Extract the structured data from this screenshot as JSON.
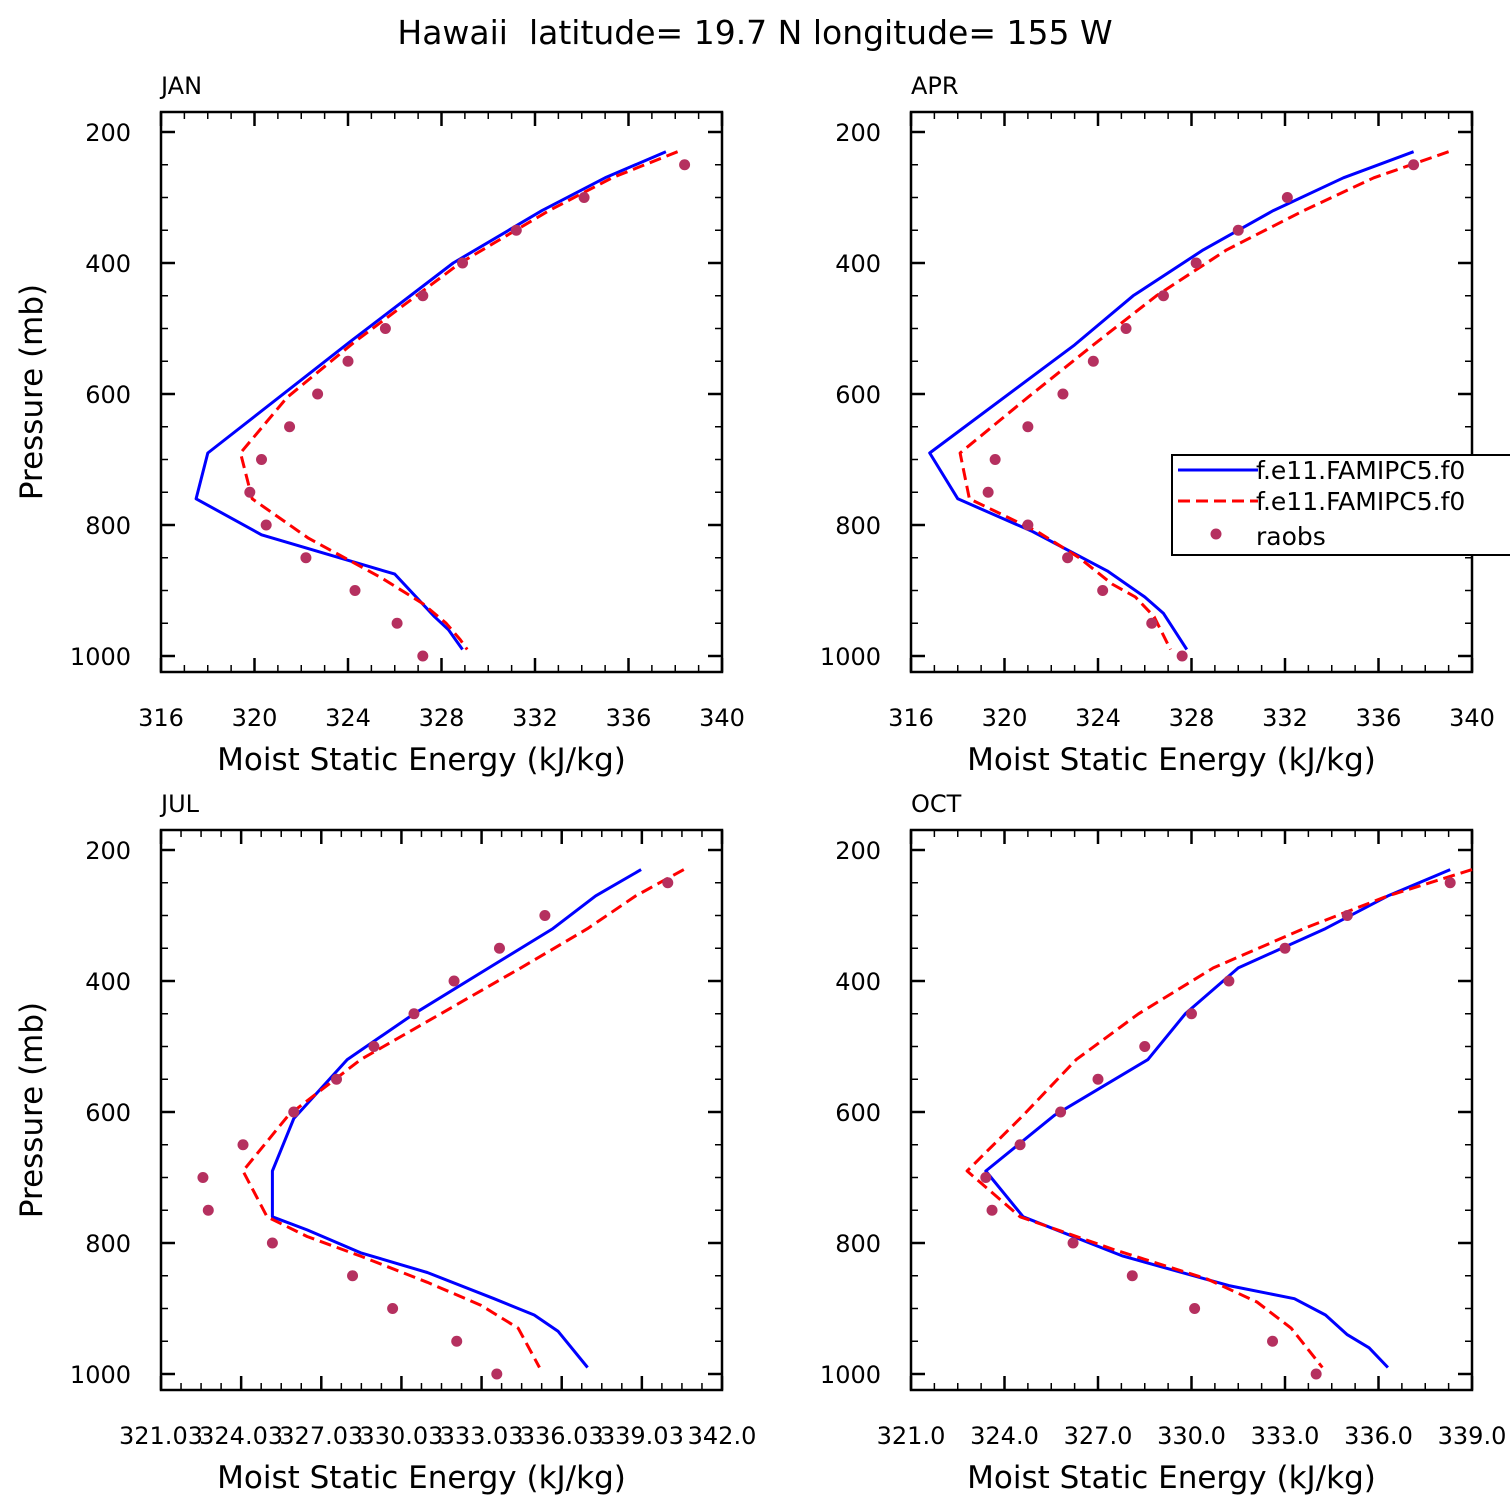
{
  "title": "Hawaii  latitude= 19.7 N longitude= 155 W",
  "legend": {
    "series": [
      "f.e11.FAMIPC5.f0",
      "f.e11.FAMIPC5.f0",
      "raobs"
    ],
    "colors": [
      "#0000ff",
      "#ff0000",
      "#b5305f"
    ],
    "styles": [
      "solid",
      "dashed",
      "dot"
    ],
    "panel": "APR",
    "placement": "right"
  },
  "chart_data": [
    {
      "type": "line",
      "title": "JAN",
      "xlabel": "Moist Static Energy (kJ/kg)",
      "ylabel": "Pressure (mb)",
      "xlim": [
        316,
        340
      ],
      "ylim": [
        200,
        1000
      ],
      "y_inverted": true,
      "xticks": [
        316,
        320,
        324,
        328,
        332,
        336,
        340
      ],
      "xtick_labels": [
        "316",
        "320",
        "324",
        "328",
        "332",
        "336",
        "340"
      ],
      "yticks": [
        200,
        400,
        600,
        800,
        1000
      ],
      "ytick_labels": [
        "200",
        "400",
        "600",
        "800",
        "1000"
      ],
      "series": [
        {
          "x": [
            337.6,
            335.0,
            332.3,
            328.5,
            324.1,
            318.0,
            317.5,
            320.3,
            326.0,
            327.7,
            328.3,
            328.6,
            328.9
          ],
          "y": [
            230,
            270,
            320,
            400,
            520,
            690,
            760,
            815,
            875,
            940,
            960,
            975,
            990
          ]
        },
        {
          "x": [
            338.1,
            335.3,
            332.6,
            328.8,
            324.3,
            321.4,
            319.4,
            319.9,
            322.3,
            325.4,
            327.2,
            328.2,
            328.8,
            329.1
          ],
          "y": [
            230,
            270,
            320,
            400,
            520,
            605,
            690,
            760,
            820,
            880,
            920,
            950,
            975,
            990
          ]
        },
        {
          "x": [
            338.4,
            334.1,
            331.2,
            328.9,
            327.2,
            325.6,
            324.0,
            322.7,
            321.5,
            320.3,
            319.8,
            320.5,
            322.2,
            324.3,
            326.1,
            327.2
          ],
          "y": [
            250,
            300,
            350,
            400,
            450,
            500,
            550,
            600,
            650,
            700,
            750,
            800,
            850,
            900,
            950,
            1000
          ]
        }
      ]
    },
    {
      "type": "line",
      "title": "APR",
      "xlabel": "Moist Static Energy (kJ/kg)",
      "ylabel": "",
      "xlim": [
        316,
        340
      ],
      "ylim": [
        200,
        1000
      ],
      "y_inverted": true,
      "xticks": [
        316,
        320,
        324,
        328,
        332,
        336,
        340
      ],
      "xtick_labels": [
        "316",
        "320",
        "324",
        "328",
        "332",
        "336",
        "340"
      ],
      "yticks": [
        200,
        400,
        600,
        800,
        1000
      ],
      "ytick_labels": [
        "200",
        "400",
        "600",
        "800",
        "1000"
      ],
      "series": [
        {
          "x": [
            337.5,
            334.5,
            331.5,
            328.5,
            325.5,
            323.0,
            316.8,
            318.0,
            321.2,
            324.4,
            326.0,
            326.8,
            327.8
          ],
          "y": [
            230,
            270,
            320,
            380,
            450,
            525,
            690,
            760,
            810,
            870,
            910,
            935,
            990
          ]
        },
        {
          "x": [
            339.0,
            335.8,
            332.8,
            329.5,
            326.5,
            323.8,
            321.0,
            318.1,
            318.5,
            321.4,
            323.2,
            324.6,
            325.6,
            326.4,
            327.1
          ],
          "y": [
            230,
            270,
            320,
            380,
            450,
            525,
            605,
            690,
            760,
            810,
            850,
            890,
            910,
            940,
            990
          ]
        },
        {
          "x": [
            337.5,
            332.1,
            330.0,
            328.2,
            326.8,
            325.2,
            323.8,
            322.5,
            321.0,
            319.6,
            319.3,
            321.0,
            322.7,
            324.2,
            326.3,
            327.6
          ],
          "y": [
            250,
            300,
            350,
            400,
            450,
            500,
            550,
            600,
            650,
            700,
            750,
            800,
            850,
            900,
            950,
            1000
          ]
        }
      ]
    },
    {
      "type": "line",
      "title": "JUL",
      "xlabel": "Moist Static Energy (kJ/kg)",
      "ylabel": "Pressure (mb)",
      "xlim": [
        321.03,
        342.03
      ],
      "ylim": [
        200,
        1000
      ],
      "y_inverted": true,
      "xticks": [
        321.03,
        324.03,
        327.03,
        330.03,
        333.03,
        336.03,
        339.03,
        342.03
      ],
      "xtick_labels": [
        "321.03",
        "324.03",
        "327.03",
        "330.03",
        "333.03",
        "336.03",
        "339.03",
        "342.0"
      ],
      "yticks": [
        200,
        400,
        600,
        800,
        1000
      ],
      "ytick_labels": [
        "200",
        "400",
        "600",
        "800",
        "1000"
      ],
      "series": [
        {
          "x": [
            339.0,
            337.3,
            335.7,
            333.3,
            330.5,
            328.0,
            326.0,
            325.2,
            325.2,
            326.5,
            328.5,
            331.0,
            333.5,
            335.0,
            335.9,
            337.0
          ],
          "y": [
            230,
            270,
            320,
            380,
            450,
            520,
            610,
            690,
            760,
            780,
            815,
            845,
            885,
            910,
            935,
            990
          ]
        },
        {
          "x": [
            340.6,
            338.8,
            337.0,
            334.5,
            331.5,
            328.5,
            325.8,
            324.1,
            325.0,
            326.5,
            328.5,
            331.0,
            333.0,
            334.4,
            335.2
          ],
          "y": [
            230,
            270,
            320,
            380,
            450,
            520,
            605,
            690,
            760,
            790,
            820,
            860,
            895,
            930,
            990
          ]
        },
        {
          "x": [
            340.0,
            335.4,
            333.7,
            332.0,
            330.5,
            329.0,
            327.6,
            326.0,
            324.1,
            322.6,
            322.8,
            325.2,
            328.2,
            329.7,
            332.1,
            333.6
          ],
          "y": [
            250,
            300,
            350,
            400,
            450,
            500,
            550,
            600,
            650,
            700,
            750,
            800,
            850,
            900,
            950,
            1000
          ]
        }
      ]
    },
    {
      "type": "line",
      "title": "OCT",
      "xlabel": "Moist Static Energy (kJ/kg)",
      "ylabel": "",
      "xlim": [
        321.0,
        339.0
      ],
      "ylim": [
        200,
        1000
      ],
      "y_inverted": true,
      "xticks": [
        321.0,
        324.0,
        327.0,
        330.0,
        333.0,
        336.0,
        339.0
      ],
      "xtick_labels": [
        "321.0",
        "324.0",
        "327.0",
        "330.0",
        "333.0",
        "336.0",
        "339.0"
      ],
      "yticks": [
        200,
        400,
        600,
        800,
        1000
      ],
      "ytick_labels": [
        "200",
        "400",
        "600",
        "800",
        "1000"
      ],
      "series": [
        {
          "x": [
            338.3,
            336.3,
            334.3,
            331.5,
            329.8,
            328.6,
            325.6,
            323.4,
            324.6,
            327.8,
            331.2,
            333.3,
            334.3,
            335.0,
            335.7,
            336.3
          ],
          "y": [
            230,
            270,
            320,
            380,
            450,
            520,
            605,
            690,
            760,
            820,
            865,
            885,
            910,
            940,
            960,
            990
          ]
        },
        {
          "x": [
            339.0,
            336.3,
            333.6,
            330.7,
            328.3,
            326.3,
            324.6,
            322.8,
            324.5,
            327.5,
            330.5,
            332.1,
            333.2,
            333.7,
            334.2
          ],
          "y": [
            230,
            270,
            320,
            380,
            450,
            520,
            605,
            690,
            760,
            810,
            855,
            890,
            930,
            960,
            990
          ]
        },
        {
          "x": [
            338.3,
            335.0,
            333.0,
            331.2,
            330.0,
            328.5,
            327.0,
            325.8,
            324.5,
            323.4,
            323.6,
            326.2,
            328.1,
            330.1,
            332.6,
            334.0
          ],
          "y": [
            250,
            300,
            350,
            400,
            450,
            500,
            550,
            600,
            650,
            700,
            750,
            800,
            850,
            900,
            950,
            1000
          ]
        }
      ]
    }
  ]
}
